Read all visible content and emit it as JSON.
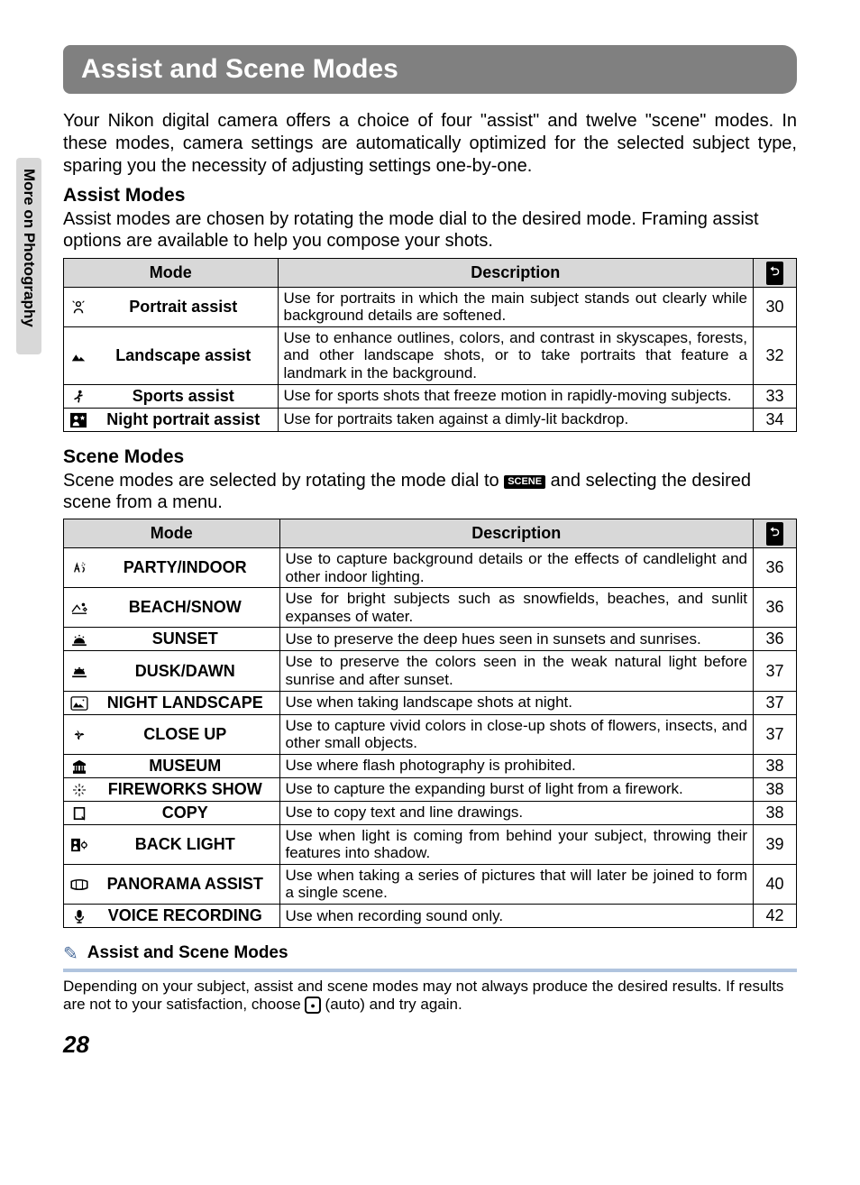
{
  "side_tab": "More on Photography",
  "title": "Assist and Scene Modes",
  "intro": "Your Nikon digital camera offers a choice of four \"assist\" and twelve \"scene\" modes. In these modes, camera settings are automatically optimized for the selected subject type, sparing you the necessity of adjusting settings one-by-one.",
  "assist": {
    "heading": "Assist Modes",
    "desc": "Assist modes are chosen by rotating the mode dial to the desired mode. Framing assist options are available to help you compose your shots.",
    "headers": {
      "mode": "Mode",
      "desc": "Description"
    },
    "rows": [
      {
        "icon": "portrait",
        "name": "Portrait assist",
        "desc": "Use for portraits in which the main subject stands out clearly while background details are softened.",
        "page": "30"
      },
      {
        "icon": "landscape",
        "name": "Landscape assist",
        "desc": "Use to enhance outlines, colors, and contrast in skyscapes, forests, and other landscape shots, or to take portraits that feature a landmark in the background.",
        "page": "32"
      },
      {
        "icon": "sports",
        "name": "Sports assist",
        "desc": "Use for sports shots that freeze motion in rapidly-moving subjects.",
        "page": "33"
      },
      {
        "icon": "night-portrait",
        "name": "Night portrait assist",
        "desc": "Use for portraits taken against a dimly-lit backdrop.",
        "page": "34"
      }
    ]
  },
  "scene": {
    "heading": "Scene Modes",
    "desc_pre": "Scene modes are selected by rotating the mode dial to ",
    "scene_label": "SCENE",
    "desc_post": " and selecting the desired scene from a menu.",
    "headers": {
      "mode": "Mode",
      "desc": "Description"
    },
    "rows": [
      {
        "icon": "party",
        "name": "PARTY/INDOOR",
        "desc": "Use to capture background details or the effects of candlelight and other indoor lighting.",
        "page": "36"
      },
      {
        "icon": "beach",
        "name": "BEACH/SNOW",
        "desc": "Use for bright subjects such as snowfields, beaches, and sunlit expanses of water.",
        "page": "36"
      },
      {
        "icon": "sunset",
        "name": "SUNSET",
        "desc": "Use to preserve the deep hues seen in sunsets and sunrises.",
        "page": "36"
      },
      {
        "icon": "dusk",
        "name": "DUSK/DAWN",
        "desc": "Use to preserve the colors seen in the weak natural light before sunrise and after sunset.",
        "page": "37"
      },
      {
        "icon": "night-landscape",
        "name": "NIGHT LANDSCAPE",
        "desc": "Use when taking landscape shots at night.",
        "page": "37"
      },
      {
        "icon": "closeup",
        "name": "CLOSE UP",
        "desc": "Use to capture vivid colors in close-up shots of flowers, insects, and other small objects.",
        "page": "37"
      },
      {
        "icon": "museum",
        "name": "MUSEUM",
        "desc": "Use where flash photography is prohibited.",
        "page": "38"
      },
      {
        "icon": "fireworks",
        "name": "FIREWORKS SHOW",
        "desc": "Use to capture the expanding burst of light from a firework.",
        "page": "38"
      },
      {
        "icon": "copy",
        "name": "COPY",
        "desc": "Use to copy text and line drawings.",
        "page": "38"
      },
      {
        "icon": "backlight",
        "name": "BACK LIGHT",
        "desc": "Use when light is coming from behind your subject, throwing their features into shadow.",
        "page": "39"
      },
      {
        "icon": "panorama",
        "name": "PANORAMA ASSIST",
        "desc": "Use when taking a series of pictures that will later be joined to form a single scene.",
        "page": "40"
      },
      {
        "icon": "voice",
        "name": "VOICE RECORDING",
        "desc": "Use when recording sound only.",
        "page": "42"
      }
    ]
  },
  "note": {
    "title": "Assist and Scene Modes",
    "body_pre": "Depending on your subject, assist and scene modes may not always produce the desired results. If results are not to your satisfaction, choose ",
    "body_post": " (auto) and try again."
  },
  "page_number": "28",
  "ref_icon_glyph": "⮌",
  "icons": {
    "portrait": "<svg class='svg-icon' width='18' height='18' viewBox='0 0 20 20'><path d='M10 3c-1.5 0-2.7 1.2-2.7 2.7 0 1.5 1.2 2.7 2.7 2.7s2.7-1.2 2.7-2.7C12.7 4.2 11.5 3 10 3zM5 17c0-3 2.2-5 5-5s5 2 5 5' fill='none' stroke='#000' stroke-width='1.6'/><path d='M3 2l2 2M17 2l-2 2' stroke='#000' stroke-width='1.2'/></svg>",
    "landscape": "<svg class='svg-icon' width='18' height='18' viewBox='0 0 20 20'><path d='M2 16l5-8 4 6 2-3 5 5z' fill='#000'/></svg>",
    "sports": "<svg class='svg-icon' width='18' height='18' viewBox='0 0 20 20'><circle cx='12' cy='4' r='2' fill='#000'/><path d='M12 6l-3 5 2 1-1 5M9 11l-4 2M11 9l4-1' stroke='#000' stroke-width='1.8' fill='none'/></svg>",
    "night-portrait": "<svg class='svg-icon' width='20' height='18' viewBox='0 0 22 20'><rect x='1' y='1' width='20' height='18' fill='#000'/><circle cx='8' cy='7' r='2.5' fill='#fff'/><path d='M4 17c0-3 1.8-5 4-5s4 2 4 5' fill='#fff'/><path d='M16 4l1 2 2 .3-1.5 1.5.4 2-1.9-1-1.9 1 .4-2L13 6.3l2-.3z' fill='#fff'/></svg>",
    "party": "<svg class='svg-icon' width='18' height='16' viewBox='0 0 20 18'><path d='M4 14l3-10 3 10M6 10h4' stroke='#000' stroke-width='1.5' fill='none'/><path d='M14 2l1 1M17 4l-1 1M13 6l1-1' stroke='#000' stroke-width='1.2'/><path d='M14 8c2 0 3 3 0 6' stroke='#000' stroke-width='1.5' fill='none'/></svg>",
    "beach": "<svg class='svg-icon' width='20' height='16' viewBox='0 0 22 18'><path d='M2 14l6-8 4 5' stroke='#000' stroke-width='1.5' fill='none'/><path d='M2 16h18' stroke='#000' stroke-width='1.5'/><circle cx='16' cy='5' r='2' fill='#000'/><circle cx='18' cy='11' r='1.5' fill='none' stroke='#000' stroke-width='1.3'/><path d='M18 8v1M18 13v1M15 11h1M20 11h1' stroke='#000'/></svg>",
    "sunset": "<svg class='svg-icon' width='20' height='14' viewBox='0 0 22 16'><path d='M4 12a7 7 0 0 1 14 0' fill='#000'/><path d='M2 14h18' stroke='#000' stroke-width='2'/><circle cx='6' cy='4' r='1' fill='#000'/><circle cx='11' cy='2' r='1' fill='#000'/><circle cx='16' cy='4' r='1' fill='#000'/></svg>",
    "dusk": "<svg class='svg-icon' width='20' height='14' viewBox='0 0 22 16'><circle cx='6' cy='5' r='1' fill='#000'/><circle cx='11' cy='3' r='1' fill='#000'/><circle cx='16' cy='5' r='1' fill='#000'/><path d='M4 11a7 7 0 0 1 14 0z' fill='#000'/><path d='M2 14h18' stroke='#000' stroke-width='2'/></svg>",
    "night-landscape": "<svg class='svg-icon' width='20' height='16' viewBox='0 0 22 18'><rect x='1' y='1' width='20' height='16' rx='2' fill='none' stroke='#000' stroke-width='1.5'/><path d='M3 14l4-6 3 4 2-2 5 4z' fill='#000'/><circle cx='16' cy='5' r='1' fill='#000'/></svg>",
    "closeup": "<svg class='svg-icon' width='18' height='16' viewBox='0 0 20 18'><path d='M10 9c-2-3-5-3-6 0 2 0 4 1 6 0zM10 9c2-3 5-3 6 0-2 0-4 1-6 0zM10 9c-3 2-3 5 0 6 0-2 1-4 0-6zM10 9c0-3-1-5-3-6 1 2 1 4 3 6z' fill='#000'/><circle cx='10' cy='9' r='1.5' fill='#fff' stroke='#000'/></svg>",
    "museum": "<svg class='svg-icon' width='18' height='16' viewBox='0 0 20 18'><path d='M3 6l7-4 7 4v1H3zM3 15h14v2H3zM5 8v6M8 8v6M12 8v6M15 8v6' stroke='#000' stroke-width='1.8' fill='#000'/></svg>",
    "fireworks": "<svg class='svg-icon' width='16' height='16' viewBox='0 0 18 18'><circle cx='9' cy='9' r='1.5' fill='#000'/><path d='M9 2v3M9 13v3M2 9h3M13 9h3M4 4l2 2M12 12l2 2M14 4l-2 2M6 12l-2 2' stroke='#000' stroke-width='1.2'/><circle cx='9' cy='2' r='.8' fill='#000'/><circle cx='9' cy='16' r='.8' fill='#000'/><circle cx='2' cy='9' r='.8' fill='#000'/><circle cx='16' cy='9' r='.8' fill='#000'/></svg>",
    "copy": "<svg class='svg-icon' width='16' height='16' viewBox='0 0 18 18'><rect x='3' y='2' width='12' height='14' fill='none' stroke='#000' stroke-width='1.8'/><rect x='3' y='2' width='12' height='14' fill='none' stroke='#000' stroke-width='1.8'/><path d='M15 2v14l-3-3' fill='#fff' stroke='#000' stroke-width='1.5'/></svg>",
    "backlight": "<svg class='svg-icon' width='20' height='16' viewBox='0 0 22 18'><rect x='1' y='1' width='11' height='16' fill='#000'/><circle cx='6' cy='6' r='2' fill='#fff'/><path d='M3 15c0-3 1.5-5 3-5s3 2 3 5' fill='#fff'/><circle cx='17' cy='9' r='3' fill='none' stroke='#000' stroke-width='1.5'/><path d='M17 4v2M17 12v2M13 9h1M20 9h1' stroke='#000' stroke-width='1.3'/></svg>",
    "panorama": "<svg class='svg-icon' width='22' height='14' viewBox='0 0 24 16'><path d='M2 4c0 0 4-2 10-2s10 2 10 2v8s-4 2-10 2-10-2-10-2z' fill='none' stroke='#000' stroke-width='1.8'/><path d='M8 3v10M16 3v10' stroke='#000' stroke-width='1.3'/></svg>",
    "voice": "<svg class='svg-icon' width='14' height='18' viewBox='0 0 16 20'><rect x='5' y='2' width='6' height='10' rx='3' fill='#000'/><path d='M3 10a5 5 0 0 0 10 0M8 15v3M5 18h6' stroke='#000' stroke-width='1.6' fill='none'/></svg>"
  }
}
